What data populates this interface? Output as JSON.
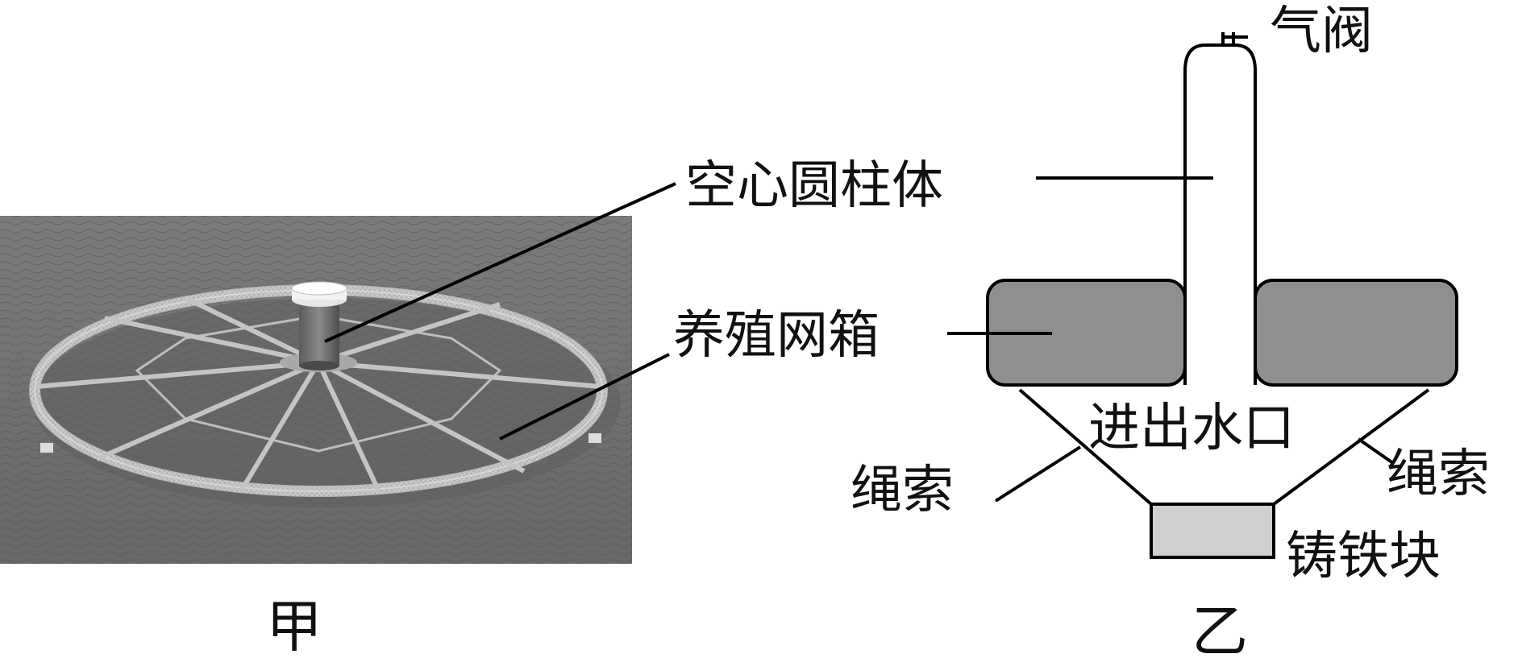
{
  "figure_a": {
    "caption": "甲",
    "labels": {
      "cylinder": "空心圆柱体",
      "net_box": "养殖网箱"
    }
  },
  "figure_b": {
    "caption": "乙",
    "labels": {
      "valve": "气阀",
      "inlet": "进出水口",
      "rope_left": "绳索",
      "rope_right": "绳索",
      "iron_block": "铸铁块"
    }
  },
  "colors": {
    "net_box_fill": "#8f8f8f",
    "iron_block_fill": "#cfcfcf",
    "sea": "#6d6d6d",
    "line": "#000000"
  }
}
